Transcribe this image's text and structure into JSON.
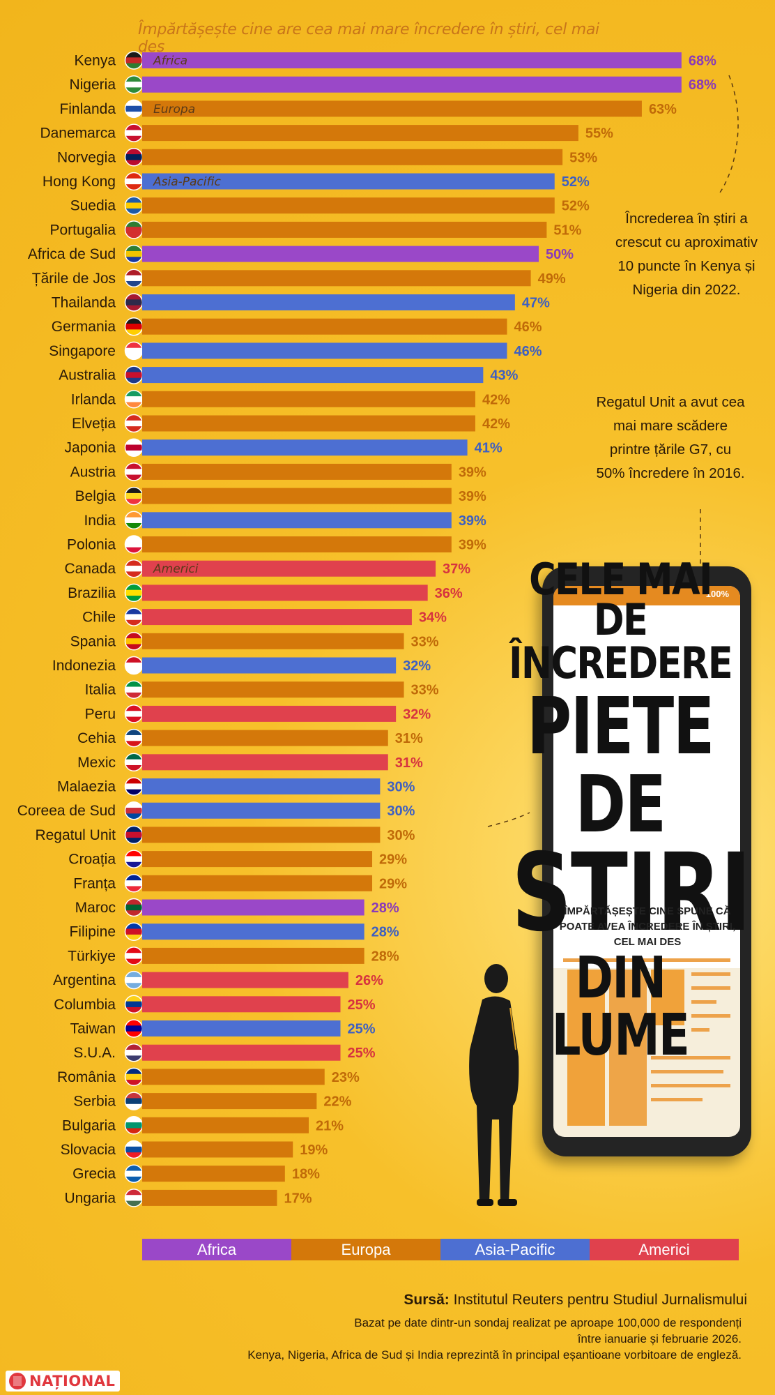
{
  "subtitle": "Împărtășește cine are cea mai mare încredere în știri, cel mai des",
  "headline": {
    "line1": "CELE MAI",
    "line2": "DE ÎNCREDERE",
    "line3": "PIETE DE",
    "line4": "STIRI",
    "line5": "DIN LUME",
    "sub": "ÎMPĂRTĂȘEȘTE CINE SPUNE CĂ POATE AVEA ÎNCREDERE ÎN ȘTIRI, CEL MAI DES"
  },
  "phone": {
    "battery": "100%"
  },
  "notes": {
    "kenya_nigeria": "Încrederea în știri a crescut cu aproximativ 10 puncte în Kenya și Nigeria din 2022.",
    "uk": "Regatul Unit a avut cea mai mare scădere printre țările G7, cu 50% încredere în 2016."
  },
  "colors": {
    "Africa": "#9a48c8",
    "Europa": "#d4780a",
    "Asia-Pacific": "#4d6fd2",
    "Americi": "#e0414d",
    "background": "#f5bd27"
  },
  "legend": [
    "Africa",
    "Europa",
    "Asia-Pacific",
    "Americi"
  ],
  "source": {
    "label": "Sursă:",
    "text": "Institutul Reuters pentru Studiul Jurnalismului",
    "line1": "Bazat pe date dintr-un sondaj realizat pe aproape 100,000 de respondenți",
    "line2": "între ianuarie și februarie 2026.",
    "line3": "Kenya, Nigeria, Africa de Sud și India reprezintă în principal eșantioane vorbitoare de engleză."
  },
  "logo": "NAȚIONAL",
  "chart_data": {
    "type": "bar",
    "orientation": "horizontal",
    "unit": "%",
    "xlim": [
      0,
      100
    ],
    "region_labels_shown": {
      "Kenya": "Africa",
      "Finlanda": "Europa",
      "Hong Kong": "Asia-Pacific",
      "Canada": "Americi"
    },
    "categories": [
      "Kenya",
      "Nigeria",
      "Finlanda",
      "Danemarca",
      "Norvegia",
      "Hong Kong",
      "Suedia",
      "Portugalia",
      "Africa de Sud",
      "Țările de Jos",
      "Thailanda",
      "Germania",
      "Singapore",
      "Australia",
      "Irlanda",
      "Elveția",
      "Japonia",
      "Austria",
      "Belgia",
      "India",
      "Polonia",
      "Canada",
      "Brazilia",
      "Chile",
      "Spania",
      "Indonezia",
      "Italia",
      "Peru",
      "Cehia",
      "Mexic",
      "Malaezia",
      "Coreea de Sud",
      "Regatul Unit",
      "Croația",
      "Franța",
      "Maroc",
      "Filipine",
      "Türkiye",
      "Argentina",
      "Columbia",
      "Taiwan",
      "S.U.A.",
      "România",
      "Serbia",
      "Bulgaria",
      "Slovacia",
      "Grecia",
      "Ungaria"
    ],
    "values": [
      68,
      68,
      63,
      55,
      53,
      52,
      52,
      51,
      50,
      49,
      47,
      46,
      46,
      43,
      42,
      42,
      41,
      39,
      39,
      39,
      39,
      37,
      36,
      34,
      33,
      32,
      33,
      32,
      31,
      31,
      30,
      30,
      30,
      29,
      29,
      28,
      28,
      28,
      26,
      25,
      25,
      25,
      23,
      22,
      21,
      19,
      18,
      17
    ],
    "regions": [
      "Africa",
      "Africa",
      "Europa",
      "Europa",
      "Europa",
      "Asia-Pacific",
      "Europa",
      "Europa",
      "Africa",
      "Europa",
      "Asia-Pacific",
      "Europa",
      "Asia-Pacific",
      "Asia-Pacific",
      "Europa",
      "Europa",
      "Asia-Pacific",
      "Europa",
      "Europa",
      "Asia-Pacific",
      "Europa",
      "Americi",
      "Americi",
      "Americi",
      "Europa",
      "Asia-Pacific",
      "Europa",
      "Americi",
      "Europa",
      "Americi",
      "Asia-Pacific",
      "Asia-Pacific",
      "Europa",
      "Europa",
      "Europa",
      "Africa",
      "Asia-Pacific",
      "Europa",
      "Americi",
      "Americi",
      "Asia-Pacific",
      "Americi",
      "Europa",
      "Europa",
      "Europa",
      "Europa",
      "Europa",
      "Europa"
    ],
    "flags": [
      [
        "#1a1a1a",
        "#c62828",
        "#2e7d32"
      ],
      [
        "#2e8b3a",
        "#ffffff",
        "#2e8b3a"
      ],
      [
        "#ffffff",
        "#1d4fa8",
        "#ffffff"
      ],
      [
        "#c8102e",
        "#ffffff",
        "#c8102e"
      ],
      [
        "#ba0c2f",
        "#00205b",
        "#ba0c2f"
      ],
      [
        "#de2910",
        "#ffffff",
        "#de2910"
      ],
      [
        "#1e5aa8",
        "#fecc00",
        "#1e5aa8"
      ],
      [
        "#2e7d32",
        "#d32f2f",
        "#d32f2f"
      ],
      [
        "#2e7d32",
        "#f2c400",
        "#1a3aa0"
      ],
      [
        "#ae1c28",
        "#ffffff",
        "#21468b"
      ],
      [
        "#a51931",
        "#2d2a4a",
        "#a51931"
      ],
      [
        "#1a1a1a",
        "#dd0000",
        "#ffce00"
      ],
      [
        "#ef3340",
        "#ffffff",
        "#ffffff"
      ],
      [
        "#1e3a8a",
        "#c8102e",
        "#1e3a8a"
      ],
      [
        "#169b62",
        "#ffffff",
        "#ff883e"
      ],
      [
        "#d52b1e",
        "#ffffff",
        "#d52b1e"
      ],
      [
        "#ffffff",
        "#bc002d",
        "#ffffff"
      ],
      [
        "#c8102e",
        "#ffffff",
        "#c8102e"
      ],
      [
        "#1a1a1a",
        "#fdda24",
        "#ef3340"
      ],
      [
        "#ff9933",
        "#ffffff",
        "#138808"
      ],
      [
        "#ffffff",
        "#ffffff",
        "#dc143c"
      ],
      [
        "#d52b1e",
        "#ffffff",
        "#d52b1e"
      ],
      [
        "#009c3b",
        "#ffdf00",
        "#009c3b"
      ],
      [
        "#1a3aa0",
        "#ffffff",
        "#d52b1e"
      ],
      [
        "#c60b1e",
        "#ffc400",
        "#c60b1e"
      ],
      [
        "#ce1126",
        "#ffffff",
        "#ffffff"
      ],
      [
        "#009246",
        "#ffffff",
        "#ce2b37"
      ],
      [
        "#d91023",
        "#ffffff",
        "#d91023"
      ],
      [
        "#11457e",
        "#ffffff",
        "#d7141a"
      ],
      [
        "#006847",
        "#ffffff",
        "#ce1126"
      ],
      [
        "#cc0001",
        "#ffffff",
        "#010066"
      ],
      [
        "#ffffff",
        "#cd2e3a",
        "#0047a0"
      ],
      [
        "#012169",
        "#c8102e",
        "#012169"
      ],
      [
        "#ff0000",
        "#ffffff",
        "#171796"
      ],
      [
        "#002395",
        "#ffffff",
        "#ed2939"
      ],
      [
        "#c1272d",
        "#006233",
        "#c1272d"
      ],
      [
        "#0038a8",
        "#ce1126",
        "#fcd116"
      ],
      [
        "#e30a17",
        "#ffffff",
        "#e30a17"
      ],
      [
        "#74acdf",
        "#ffffff",
        "#74acdf"
      ],
      [
        "#fcd116",
        "#003893",
        "#ce1126"
      ],
      [
        "#fe0000",
        "#000095",
        "#fe0000"
      ],
      [
        "#b22234",
        "#ffffff",
        "#3c3b6e"
      ],
      [
        "#002b7f",
        "#fcd116",
        "#ce1126"
      ],
      [
        "#c6363c",
        "#0c4076",
        "#ffffff"
      ],
      [
        "#ffffff",
        "#00966e",
        "#d62612"
      ],
      [
        "#ffffff",
        "#0b4ea2",
        "#ee1c25"
      ],
      [
        "#0d5eaf",
        "#ffffff",
        "#0d5eaf"
      ],
      [
        "#ce2939",
        "#ffffff",
        "#477050"
      ]
    ]
  }
}
